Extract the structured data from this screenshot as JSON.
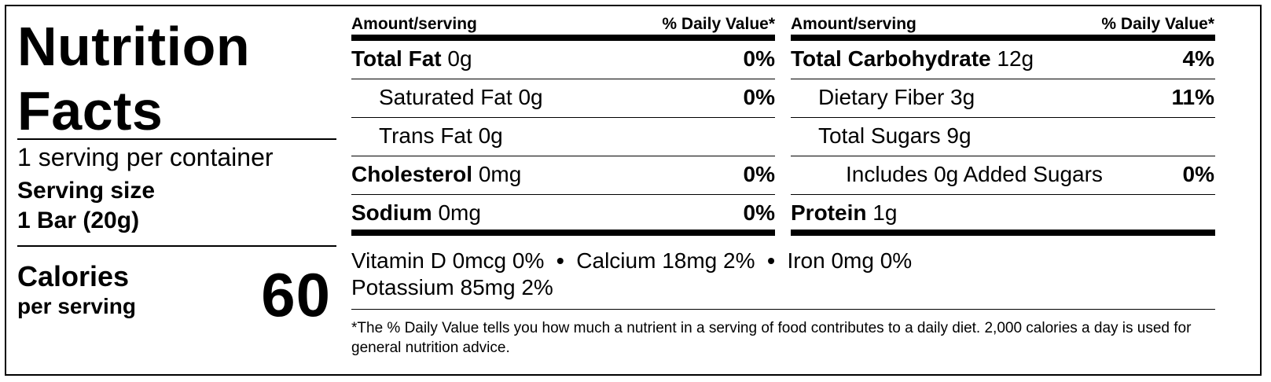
{
  "label": {
    "title_line1": "Nutrition",
    "title_line2": "Facts",
    "servings_per_container": "1 serving per container",
    "serving_size_label": "Serving size",
    "serving_size_value": "1 Bar (20g)",
    "calories_label": "Calories",
    "calories_sub": "per serving",
    "calories_value": "60"
  },
  "table": {
    "header_amount": "Amount/serving",
    "header_dv": "% Daily Value*",
    "left_column": [
      {
        "name": "Total Fat",
        "amount": "0g",
        "dv": "0%"
      },
      {
        "name": "Saturated Fat",
        "amount": "0g",
        "dv": "0%"
      },
      {
        "name": "Trans Fat",
        "amount": "0g",
        "dv": ""
      },
      {
        "name": "Cholesterol",
        "amount": "0mg",
        "dv": "0%"
      },
      {
        "name": "Sodium",
        "amount": "0mg",
        "dv": "0%"
      }
    ],
    "right_column": [
      {
        "name": "Total Carbohydrate",
        "amount": "12g",
        "dv": "4%"
      },
      {
        "name": "Dietary Fiber",
        "amount": "3g",
        "dv": "11%"
      },
      {
        "name": "Total Sugars",
        "amount": "9g",
        "dv": ""
      },
      {
        "name": "Includes 0g Added Sugars",
        "amount": "",
        "dv": "0%"
      },
      {
        "name": "Protein",
        "amount": "1g",
        "dv": ""
      }
    ]
  },
  "vitamins": {
    "vitamin_d": "Vitamin D 0mcg 0%",
    "calcium": "Calcium 18mg 2%",
    "iron": "Iron 0mg 0%",
    "potassium": "Potassium 85mg 2%",
    "separator": "•"
  },
  "footnote": "*The % Daily Value tells you how much a nutrient in a serving of food contributes to a daily diet. 2,000 calories a day is used for general nutrition advice."
}
